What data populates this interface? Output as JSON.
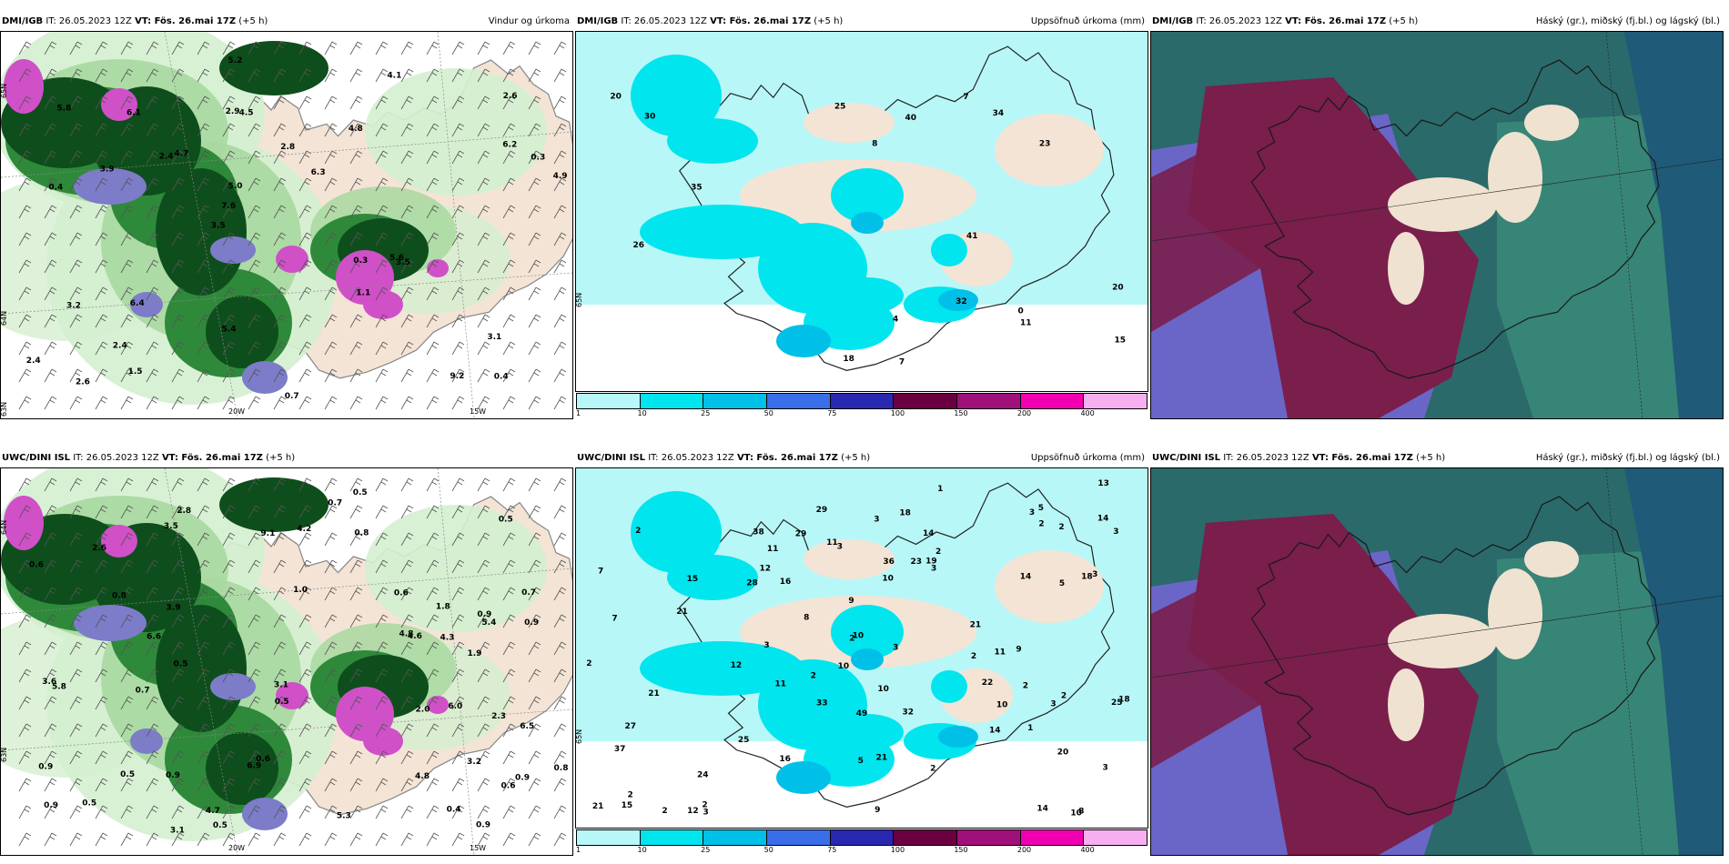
{
  "top": {
    "wind": {
      "src": "DMI/IGB",
      "it": "IT: 26.05.2023 12Z",
      "vt": "VT: Fös. 26.mai 17Z",
      "lead": "(+5 h)",
      "title": "Vindur og úrkoma",
      "labels": [
        "0.4",
        "0.4",
        "2.6",
        "3.5",
        "4.8",
        "2.6",
        "2.9",
        "2.8",
        "3.2",
        "4.7",
        "2.4",
        "2.4",
        "4.5",
        "6.3",
        "3.5",
        "5.8",
        "5.2",
        "4.9",
        "0.3",
        "6.2",
        "7.6",
        "5.4",
        "5.0",
        "6.1",
        "4.1",
        "6.4",
        "9.2",
        "3.1",
        "5.6",
        "0.7",
        "2.4",
        "3.9",
        "1.1",
        "1.5",
        "0.3"
      ],
      "lon1": "20W",
      "lon2": "15W",
      "lat1": "65N",
      "lat2": "64N",
      "lat3": "63N"
    },
    "precip": {
      "src": "DMI/IGB",
      "it": "IT: 26.05.2023 12Z",
      "vt": "VT: Fös. 26.mai 17Z",
      "lead": "(+5 h)",
      "title": "Uppsöfnuð úrkoma (mm)",
      "labels": [
        "8",
        "11",
        "20",
        "23",
        "18",
        "25",
        "7",
        "7",
        "35",
        "26",
        "0",
        "40",
        "41",
        "30",
        "15",
        "34",
        "20",
        "32",
        "4"
      ],
      "lat": "65N"
    },
    "clouds": {
      "src": "DMI/IGB",
      "it": "IT: 26.05.2023 12Z",
      "vt": "VT: Fös. 26.mai 17Z",
      "lead": "(+5 h)",
      "title": "Háský (gr.), miðský (fj.bl.) og lágský (bl.)"
    }
  },
  "bottom": {
    "wind": {
      "src": "UWC/DINI ISL",
      "it": "IT: 26.05.2023 12Z",
      "vt": "VT: Fös. 26.mai 17Z",
      "lead": "(+5 h)",
      "title": "",
      "labels": [
        "3.2",
        "0.7",
        "0.9",
        "1.0",
        "0.9",
        "2.8",
        "0.9",
        "0.9",
        "0.5",
        "0.8",
        "0.9",
        "0.6",
        "1.9",
        "0.5",
        "0.9",
        "2.6",
        "0.6",
        "3.5",
        "0.6",
        "5.4",
        "3.6",
        "5.8",
        "5.3",
        "4.8",
        "4.7",
        "6.9",
        "0.7",
        "0.8",
        "0.6",
        "0.8",
        "0.7",
        "4.8",
        "3.1",
        "3.1",
        "2.3",
        "0.4",
        "4.6",
        "9.1",
        "0.9",
        "0.5",
        "6.0",
        "4.3",
        "4.2",
        "6.6",
        "6.5",
        "2.0",
        "0.5",
        "0.5",
        "3.9",
        "1.8",
        "0.5",
        "0.5"
      ],
      "lon1": "20W",
      "lon2": "15W",
      "lat1": "64N",
      "lat2": "63N"
    },
    "precip": {
      "src": "UWC/DINI ISL",
      "it": "IT: 26.05.2023 12Z",
      "vt": "VT: Fös. 26.mai 17Z",
      "lead": "(+5 h)",
      "title": "Uppsöfnuð úrkoma (mm)",
      "labels": [
        "9",
        "10",
        "10",
        "9",
        "11",
        "10",
        "11",
        "10",
        "14",
        "12",
        "11",
        "15",
        "14",
        "13",
        "20",
        "14",
        "12",
        "24",
        "25",
        "18",
        "21",
        "19",
        "7",
        "12",
        "37",
        "15",
        "49",
        "32",
        "28",
        "14",
        "36",
        "27",
        "29",
        "25",
        "22",
        "21",
        "21",
        "23",
        "18",
        "29",
        "21",
        "18",
        "33",
        "38",
        "5",
        "3",
        "3",
        "2",
        "2",
        "2",
        "1",
        "2",
        "2",
        "2",
        "3",
        "3",
        "2",
        "1",
        "2",
        "2",
        "3",
        "3",
        "2",
        "2",
        "2",
        "7",
        "8",
        "11",
        "10",
        "16",
        "10",
        "2",
        "2",
        "3",
        "5",
        "8",
        "14",
        "16",
        "21",
        "9",
        "5",
        "3",
        "3",
        "3",
        "3"
      ],
      "lat": "65N"
    },
    "clouds": {
      "src": "UWC/DINI ISL",
      "it": "IT: 26.05.2023 12Z",
      "vt": "VT: Fös. 26.mai 17Z",
      "lead": "(+5 h)",
      "title": "Háský (gr.), miðský (fj.bl.) og lágský (bl.)"
    }
  },
  "colorbar": {
    "ticks": [
      "1",
      "10",
      "25",
      "50",
      "75",
      "100",
      "150",
      "200",
      "400"
    ],
    "colors": [
      "#b8f7f7",
      "#00e5ee",
      "#00c0e8",
      "#3a6ee8",
      "#2828b0",
      "#6a0040",
      "#a0107a",
      "#f000b0",
      "#f6b0f0"
    ]
  },
  "colors": {
    "land": "#f4e4d6",
    "sea_wind": "#ffffff",
    "precip_base": "#b8f7f7",
    "precip_mid": "#00e5ee",
    "green_dark": "#0e4e1c",
    "green_mid": "#2e8a3a",
    "green_light": "#a8d8a0",
    "green_pale": "#d4efd0",
    "violet": "#7c7cc8",
    "magenta": "#d050c8",
    "cloud_maroon": "#7a1e4c",
    "cloud_blue": "#6a66c8",
    "cloud_teal": "#2a6a6a",
    "cloud_deep": "#1f5a78",
    "cloud_green": "#3a8a78",
    "cloud_cream": "#f0e2d0"
  }
}
